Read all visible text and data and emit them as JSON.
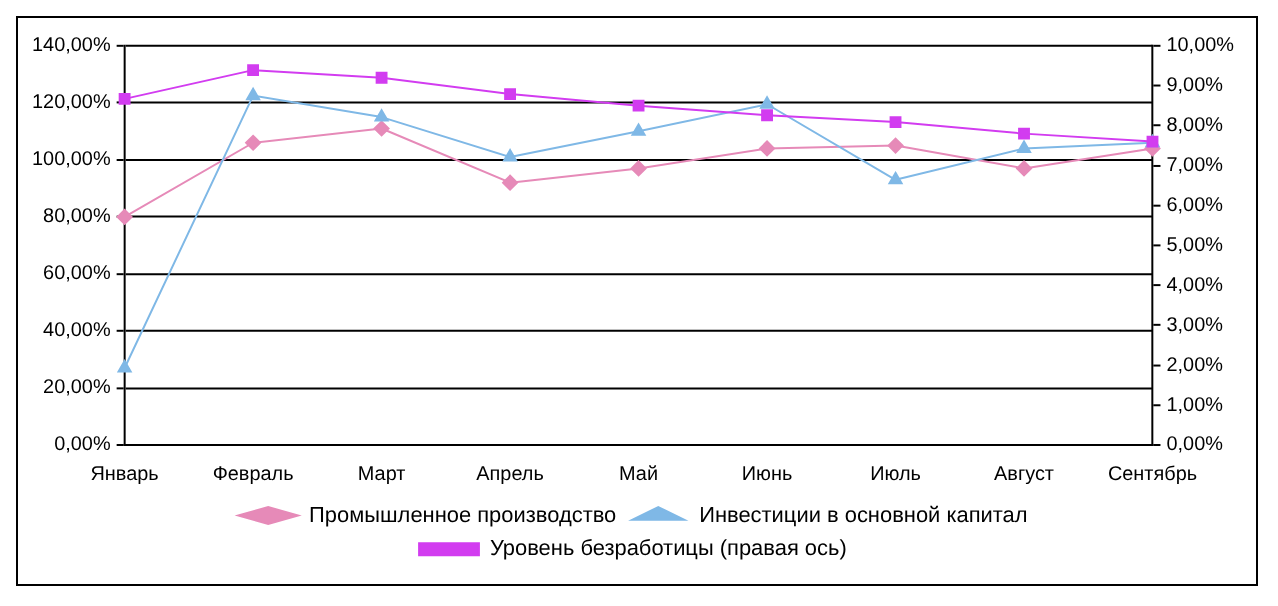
{
  "chart_data": {
    "type": "line",
    "categories": [
      "Январь",
      "Февраль",
      "Март",
      "Апрель",
      "Май",
      "Июнь",
      "Июль",
      "Август",
      "Сентябрь"
    ],
    "series": [
      {
        "name": "Промышленное производство",
        "color": "#e68ab8",
        "marker": "diamond",
        "values": [
          80,
          106,
          111,
          92,
          97,
          104,
          105,
          97,
          104
        ]
      },
      {
        "name": "Инвестиции в основной капитал",
        "color": "#7fb8e6",
        "marker": "triangle",
        "values": [
          27,
          122.5,
          115,
          101,
          110,
          119.5,
          93,
          104,
          106
        ]
      },
      {
        "name": "Уровень безработицы (правая ось)",
        "color": "#d23cf0",
        "marker": "square",
        "axis": "y2",
        "values": [
          8.67,
          9.39,
          9.2,
          8.79,
          8.5,
          8.26,
          8.09,
          7.8,
          7.6
        ]
      }
    ],
    "ylim": [
      0,
      140
    ],
    "yticks": [
      {
        "value": 0,
        "label": "0,00%"
      },
      {
        "value": 20,
        "label": "20,00%"
      },
      {
        "value": 40,
        "label": "40,00%"
      },
      {
        "value": 60,
        "label": "60,00%"
      },
      {
        "value": 80,
        "label": "80,00%"
      },
      {
        "value": 100,
        "label": "100,00%"
      },
      {
        "value": 120,
        "label": "120,00%"
      },
      {
        "value": 140,
        "label": "140,00%"
      }
    ],
    "y2lim": [
      0,
      10
    ],
    "y2ticks": [
      {
        "value": 0,
        "label": "0,00%"
      },
      {
        "value": 1,
        "label": "1,00%"
      },
      {
        "value": 2,
        "label": "2,00%"
      },
      {
        "value": 3,
        "label": "3,00%"
      },
      {
        "value": 4,
        "label": "4,00%"
      },
      {
        "value": 5,
        "label": "5,00%"
      },
      {
        "value": 6,
        "label": "6,00%"
      },
      {
        "value": 7,
        "label": "7,00%"
      },
      {
        "value": 8,
        "label": "8,00%"
      },
      {
        "value": 9,
        "label": "9,00%"
      },
      {
        "value": 10,
        "label": "10,00%"
      }
    ],
    "grid": "y",
    "legend": "bottom"
  }
}
